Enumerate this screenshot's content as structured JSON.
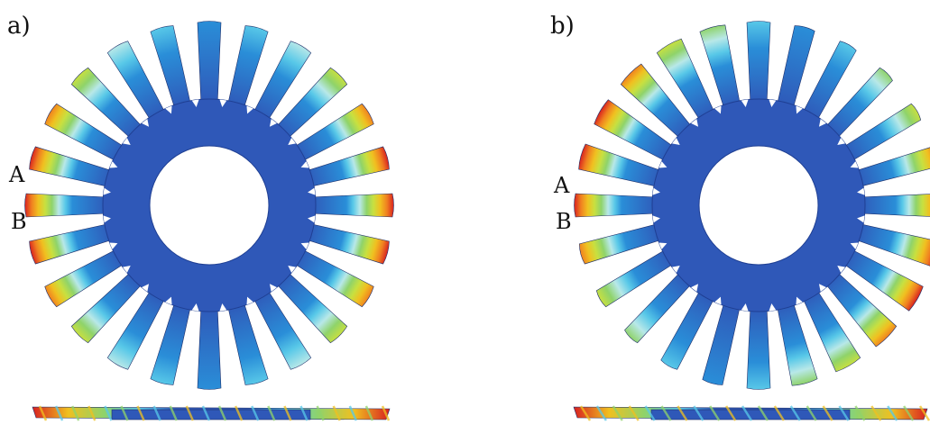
{
  "panels": [
    {
      "id": "a",
      "label": "a)",
      "blade_labels": {
        "upper": "A",
        "lower": "B"
      },
      "blade_count": 24,
      "pattern": "symmetric"
    },
    {
      "id": "b",
      "label": "b)",
      "blade_labels": {
        "upper": "A",
        "lower": "B"
      },
      "blade_count": 24,
      "pattern": "twisted"
    }
  ],
  "colors": {
    "disk": "#2f58b8",
    "disk_edge": "#1f3f93",
    "scale": [
      "#2f58b8",
      "#2a8ed8",
      "#58c8e8",
      "#b8e8e8",
      "#8fd36a",
      "#c8e040",
      "#f0c020",
      "#f08020",
      "#d82020"
    ]
  }
}
